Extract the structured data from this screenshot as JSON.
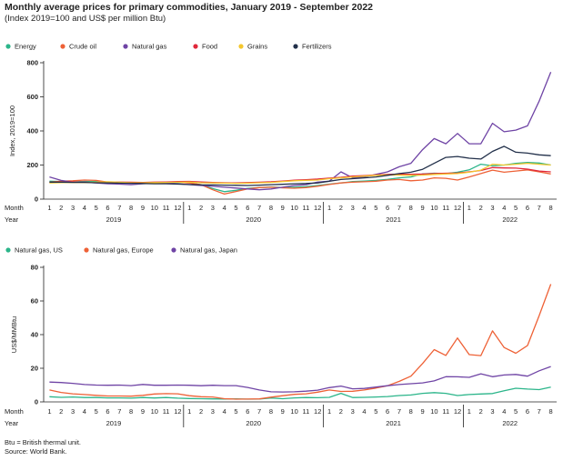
{
  "title": "Monthly average prices for primary commodities, January 2019 - September 2022",
  "subtitle": "(Index 2019=100 and US$ per million Btu)",
  "footnote": "Btu = British thermal unit.",
  "source": "Source: World Bank.",
  "x_axis": {
    "month_label": "Month",
    "year_label": "Year",
    "months": [
      "1",
      "2",
      "3",
      "4",
      "5",
      "6",
      "7",
      "8",
      "9",
      "10",
      "11",
      "12",
      "1",
      "2",
      "3",
      "4",
      "5",
      "6",
      "7",
      "8",
      "9",
      "10",
      "11",
      "12",
      "1",
      "2",
      "3",
      "4",
      "5",
      "6",
      "7",
      "8",
      "9",
      "10",
      "11",
      "12",
      "1",
      "2",
      "3",
      "4",
      "5",
      "6",
      "7",
      "8"
    ],
    "years": [
      "2019",
      "2020",
      "2021",
      "2022"
    ]
  },
  "chart_data": [
    {
      "type": "line",
      "ylabel": "Index, 2019=100",
      "ylim": [
        0,
        800
      ],
      "yticks": [
        0,
        200,
        400,
        600,
        800
      ],
      "grid": false,
      "legend": "top",
      "series": [
        {
          "name": "Energy",
          "color": "#2bb58a",
          "values": [
            105,
            103,
            102,
            104,
            103,
            99,
            97,
            95,
            93,
            92,
            94,
            98,
            96,
            84,
            62,
            44,
            52,
            63,
            68,
            71,
            68,
            70,
            73,
            80,
            88,
            95,
            103,
            106,
            110,
            116,
            125,
            130,
            148,
            152,
            150,
            158,
            172,
            205,
            195,
            200,
            210,
            215,
            212,
            200
          ]
        },
        {
          "name": "Crude oil",
          "color": "#ee6136",
          "values": [
            100,
            105,
            108,
            112,
            110,
            100,
            98,
            95,
            97,
            95,
            97,
            100,
            95,
            85,
            55,
            30,
            45,
            60,
            68,
            70,
            66,
            64,
            68,
            76,
            86,
            95,
            100,
            102,
            105,
            112,
            115,
            108,
            112,
            125,
            122,
            112,
            130,
            150,
            170,
            158,
            165,
            172,
            160,
            148
          ]
        },
        {
          "name": "Natural gas",
          "color": "#6f44a5",
          "values": [
            130,
            110,
            100,
            100,
            95,
            90,
            88,
            85,
            90,
            95,
            95,
            90,
            85,
            80,
            75,
            70,
            65,
            60,
            55,
            60,
            70,
            80,
            85,
            100,
            105,
            160,
            125,
            130,
            145,
            160,
            190,
            210,
            290,
            355,
            325,
            385,
            325,
            325,
            445,
            395,
            405,
            430,
            575,
            745
          ]
        },
        {
          "name": "Food",
          "color": "#e0283b",
          "values": [
            98,
            100,
            100,
            99,
            97,
            98,
            100,
            99,
            98,
            100,
            101,
            103,
            104,
            101,
            98,
            96,
            95,
            97,
            99,
            102,
            106,
            111,
            114,
            118,
            123,
            128,
            135,
            138,
            142,
            145,
            146,
            146,
            147,
            150,
            152,
            153,
            160,
            168,
            185,
            183,
            182,
            176,
            165,
            160
          ]
        },
        {
          "name": "Grains",
          "color": "#f4c72e",
          "values": [
            95,
            97,
            98,
            97,
            99,
            102,
            99,
            96,
            96,
            97,
            98,
            99,
            100,
            96,
            95,
            94,
            93,
            94,
            96,
            98,
            103,
            108,
            110,
            112,
            120,
            125,
            130,
            135,
            140,
            142,
            141,
            140,
            141,
            145,
            148,
            150,
            158,
            170,
            205,
            200,
            205,
            210,
            205,
            200
          ]
        },
        {
          "name": "Fertilizers",
          "color": "#22304a",
          "values": [
            100,
            100,
            98,
            98,
            96,
            95,
            94,
            93,
            92,
            90,
            90,
            88,
            86,
            84,
            83,
            82,
            81,
            80,
            82,
            85,
            87,
            90,
            92,
            95,
            105,
            115,
            120,
            125,
            130,
            140,
            150,
            158,
            175,
            210,
            245,
            250,
            240,
            235,
            280,
            310,
            275,
            270,
            260,
            255
          ]
        }
      ]
    },
    {
      "type": "line",
      "ylabel": "US$/MMBtu",
      "ylim": [
        0,
        80
      ],
      "yticks": [
        0,
        20,
        40,
        60,
        80
      ],
      "grid": false,
      "legend": "top",
      "series": [
        {
          "name": "Natural gas, US",
          "color": "#2bb58a",
          "values": [
            3.1,
            2.7,
            2.9,
            2.6,
            2.6,
            2.4,
            2.4,
            2.2,
            2.6,
            2.3,
            2.6,
            2.2,
            2.0,
            1.9,
            1.8,
            1.7,
            1.8,
            1.6,
            1.7,
            2.3,
            1.9,
            2.4,
            2.6,
            2.5,
            2.7,
            5.1,
            2.6,
            2.7,
            2.9,
            3.2,
            3.8,
            4.1,
            5.1,
            5.5,
            5.1,
            3.8,
            4.4,
            4.7,
            5.0,
            6.6,
            8.1,
            7.6,
            7.3,
            8.8
          ]
        },
        {
          "name": "Natural gas, Europe",
          "color": "#ee6136",
          "values": [
            7.1,
            5.6,
            4.8,
            4.4,
            3.9,
            3.5,
            3.5,
            3.4,
            3.9,
            4.7,
            4.9,
            4.8,
            3.7,
            3.1,
            2.9,
            1.9,
            1.6,
            1.7,
            1.8,
            2.8,
            3.7,
            4.5,
            4.8,
            5.8,
            7.1,
            6.2,
            6.3,
            7.1,
            8.2,
            9.6,
            12.2,
            15.3,
            22.8,
            31.1,
            27.6,
            38.0,
            28.1,
            27.5,
            42.2,
            32.3,
            28.9,
            33.5,
            51.3,
            70.0
          ]
        },
        {
          "name": "Natural gas, Japan",
          "color": "#6f44a5",
          "values": [
            11.8,
            11.5,
            11.0,
            10.3,
            10.0,
            9.9,
            10.0,
            9.7,
            10.4,
            9.9,
            9.9,
            10.0,
            9.9,
            9.6,
            9.9,
            9.7,
            9.7,
            8.6,
            7.1,
            6.0,
            5.9,
            6.0,
            6.4,
            7.0,
            8.5,
            9.4,
            7.8,
            8.0,
            8.8,
            9.6,
            10.3,
            10.8,
            11.3,
            12.5,
            15.0,
            14.9,
            14.6,
            16.7,
            15.0,
            16.0,
            16.3,
            15.3,
            18.5,
            21.0
          ]
        }
      ]
    }
  ]
}
